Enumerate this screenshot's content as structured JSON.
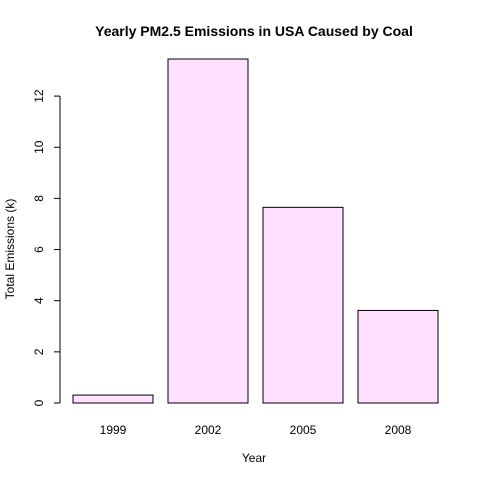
{
  "chart_data": {
    "type": "bar",
    "title": "Yearly PM2.5 Emissions in USA Caused by Coal",
    "xlabel": "Year",
    "ylabel": "Total Emissions (k)",
    "categories": [
      "1999",
      "2002",
      "2005",
      "2008"
    ],
    "values": [
      0.31,
      13.45,
      7.65,
      3.62
    ],
    "ylim": [
      0,
      13.45
    ],
    "yticks": [
      0,
      2,
      4,
      6,
      8,
      10,
      12
    ],
    "grid": false,
    "legend": "none",
    "bar_fill": "#ffe0ff",
    "bar_stroke": "#000000"
  }
}
